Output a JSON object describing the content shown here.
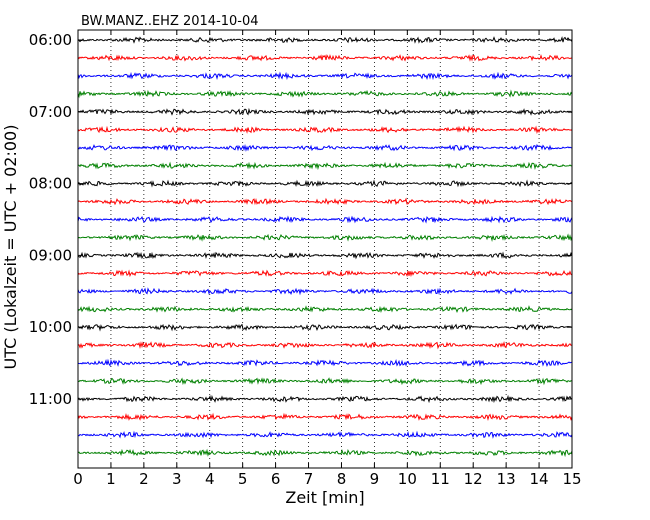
{
  "chart_data": {
    "type": "line",
    "title": "BW.MANZ..EHZ 2014-10-04",
    "xlabel": "Zeit  [min]",
    "ylabel": "UTC (Lokalzeit = UTC + 02:00)",
    "xlim": [
      0,
      15
    ],
    "x_ticks": [
      "0",
      "1",
      "2",
      "3",
      "4",
      "5",
      "6",
      "7",
      "8",
      "9",
      "10",
      "11",
      "12",
      "13",
      "14",
      "15"
    ],
    "y_ticks": [
      "06:00",
      "07:00",
      "08:00",
      "09:00",
      "10:00",
      "11:00"
    ],
    "trace_interval_min": 15,
    "trace_count": 24,
    "first_trace_utc": "06:00",
    "trace_colors": [
      "#000000",
      "#ff0000",
      "#0000ff",
      "#008000"
    ],
    "grid": "vertical dotted lines at each minute"
  }
}
